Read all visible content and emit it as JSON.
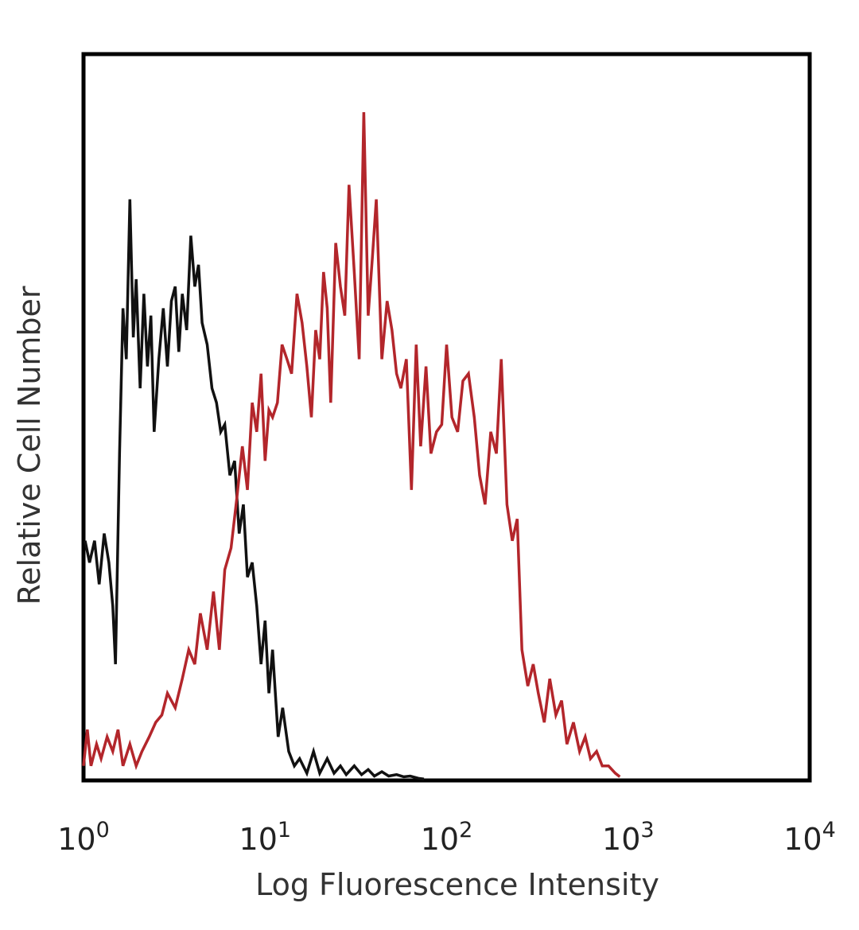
{
  "chart_data": {
    "type": "line",
    "xlabel": "Log Fluorescence Intensity",
    "ylabel": "Relative Cell Number",
    "xscale": "log",
    "xlim": [
      1,
      10000
    ],
    "ylim": [
      0,
      100
    ],
    "grid": false,
    "legend": "none",
    "ticks": [
      {
        "base": "10",
        "exp": "0",
        "value": 1
      },
      {
        "base": "10",
        "exp": "1",
        "value": 10
      },
      {
        "base": "10",
        "exp": "2",
        "value": 100
      },
      {
        "base": "10",
        "exp": "3",
        "value": 1000
      },
      {
        "base": "10",
        "exp": "4",
        "value": 10000
      }
    ],
    "series": [
      {
        "color": "#111111",
        "x": [
          1.02,
          1.08,
          1.15,
          1.22,
          1.3,
          1.38,
          1.45,
          1.5,
          1.58,
          1.65,
          1.72,
          1.8,
          1.88,
          1.95,
          2.05,
          2.15,
          2.25,
          2.35,
          2.45,
          2.6,
          2.75,
          2.9,
          3.05,
          3.2,
          3.35,
          3.5,
          3.7,
          3.9,
          4.1,
          4.3,
          4.5,
          4.8,
          5.1,
          5.4,
          5.7,
          6.0,
          6.4,
          6.8,
          7.2,
          7.6,
          8.0,
          8.5,
          9.0,
          9.5,
          10.0,
          10.5,
          11.0,
          11.8,
          12.5,
          13.5,
          14.5,
          15.5,
          17.0,
          18.5,
          20.0,
          22.0,
          24.0,
          26.0,
          28.0,
          31.0,
          34.0,
          37.0,
          40.0,
          44.0,
          48.0,
          53.0,
          58.0,
          63.0,
          70.0,
          75.0
        ],
        "y": [
          33,
          30,
          33,
          27,
          34,
          30,
          24,
          16,
          45,
          65,
          58,
          80,
          61,
          69,
          54,
          67,
          57,
          64,
          48,
          58,
          65,
          57,
          66,
          68,
          59,
          67,
          62,
          75,
          68,
          71,
          63,
          60,
          54,
          52,
          48,
          49,
          42,
          44,
          34,
          38,
          28,
          30,
          24,
          16,
          22,
          12,
          18,
          6,
          10,
          4,
          2,
          3,
          1,
          4,
          1,
          3,
          1,
          2,
          0.8,
          2,
          0.8,
          1.5,
          0.6,
          1.2,
          0.6,
          0.8,
          0.5,
          0.6,
          0.3,
          0.2
        ]
      },
      {
        "color": "#b3262b",
        "x": [
          1.0,
          1.05,
          1.1,
          1.18,
          1.25,
          1.35,
          1.45,
          1.55,
          1.65,
          1.8,
          1.95,
          2.1,
          2.3,
          2.5,
          2.7,
          2.9,
          3.2,
          3.5,
          3.8,
          4.1,
          4.4,
          4.8,
          5.2,
          5.6,
          6.0,
          6.5,
          7.0,
          7.5,
          8.0,
          8.5,
          9.0,
          9.5,
          10.0,
          10.5,
          11.0,
          11.7,
          12.4,
          13.2,
          14.0,
          15.0,
          16.0,
          17.0,
          18.0,
          19.0,
          20.0,
          21.0,
          22.0,
          23.0,
          24.5,
          26.0,
          27.5,
          29.0,
          31.0,
          33.0,
          35.0,
          37.0,
          39.0,
          41.0,
          44.0,
          47.0,
          50.0,
          53.0,
          56.0,
          60.0,
          64.0,
          68.0,
          72.0,
          77.0,
          82.0,
          88.0,
          94.0,
          100.0,
          107.0,
          115.0,
          123.0,
          132.0,
          142.0,
          152.0,
          163.0,
          175.0,
          188.0,
          200.0,
          215.0,
          230.0,
          245.0,
          260.0,
          280.0,
          300.0,
          320.0,
          345.0,
          370.0,
          400.0,
          430.0,
          460.0,
          500.0,
          540.0,
          580.0,
          620.0,
          670.0,
          720.0,
          780.0,
          850.0,
          900.0
        ],
        "y": [
          2,
          7,
          2,
          5,
          3,
          6,
          4,
          7,
          2,
          5,
          2,
          4,
          6,
          8,
          9,
          12,
          10,
          14,
          18,
          16,
          23,
          18,
          26,
          18,
          29,
          32,
          39,
          46,
          40,
          52,
          48,
          56,
          44,
          51,
          50,
          52,
          60,
          58,
          56,
          67,
          63,
          57,
          50,
          62,
          58,
          70,
          65,
          52,
          74,
          68,
          64,
          82,
          70,
          58,
          92,
          64,
          72,
          80,
          58,
          66,
          62,
          56,
          54,
          58,
          40,
          60,
          46,
          57,
          45,
          48,
          49,
          60,
          50,
          48,
          55,
          56,
          50,
          42,
          38,
          48,
          45,
          58,
          38,
          33,
          36,
          18,
          13,
          16,
          12,
          8,
          14,
          9,
          11,
          5,
          8,
          4,
          6,
          3,
          4,
          2,
          2,
          1,
          0.5
        ]
      }
    ]
  }
}
